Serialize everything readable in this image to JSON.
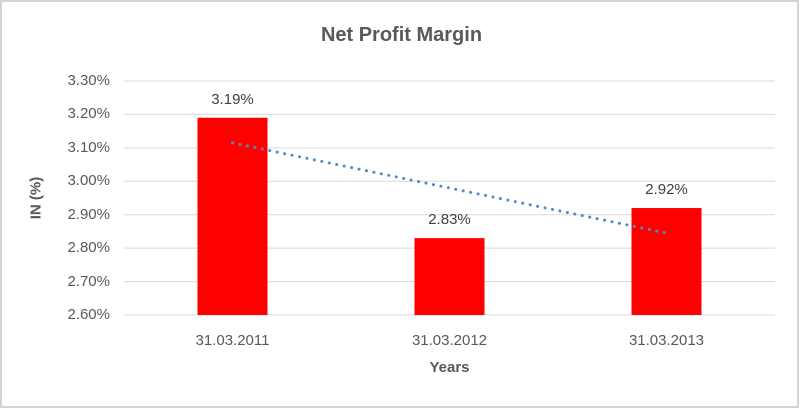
{
  "chart_data": {
    "type": "bar",
    "title": "Net Profit Margin",
    "xlabel": "Years",
    "ylabel": "IN (%)",
    "categories": [
      "31.03.2011",
      "31.03.2012",
      "31.03.2013"
    ],
    "values": [
      3.19,
      2.83,
      2.92
    ],
    "data_labels": [
      "3.19%",
      "2.83%",
      "2.92%"
    ],
    "ylim": [
      2.6,
      3.3
    ],
    "yticks": [
      2.6,
      2.7,
      2.8,
      2.9,
      3.0,
      3.1,
      3.2,
      3.3
    ],
    "ytick_labels": [
      "2.60%",
      "2.70%",
      "2.80%",
      "2.90%",
      "3.00%",
      "3.10%",
      "3.20%",
      "3.30%"
    ],
    "grid": true,
    "legend": false,
    "trendline": {
      "type": "linear",
      "style": "dotted",
      "start_value": 3.115,
      "end_value": 2.845
    },
    "colors": {
      "bar": "#FF0000",
      "trendline": "#4E8BC8",
      "grid": "#D9D9D9",
      "text": "#595959",
      "data_label": "#404040"
    }
  }
}
